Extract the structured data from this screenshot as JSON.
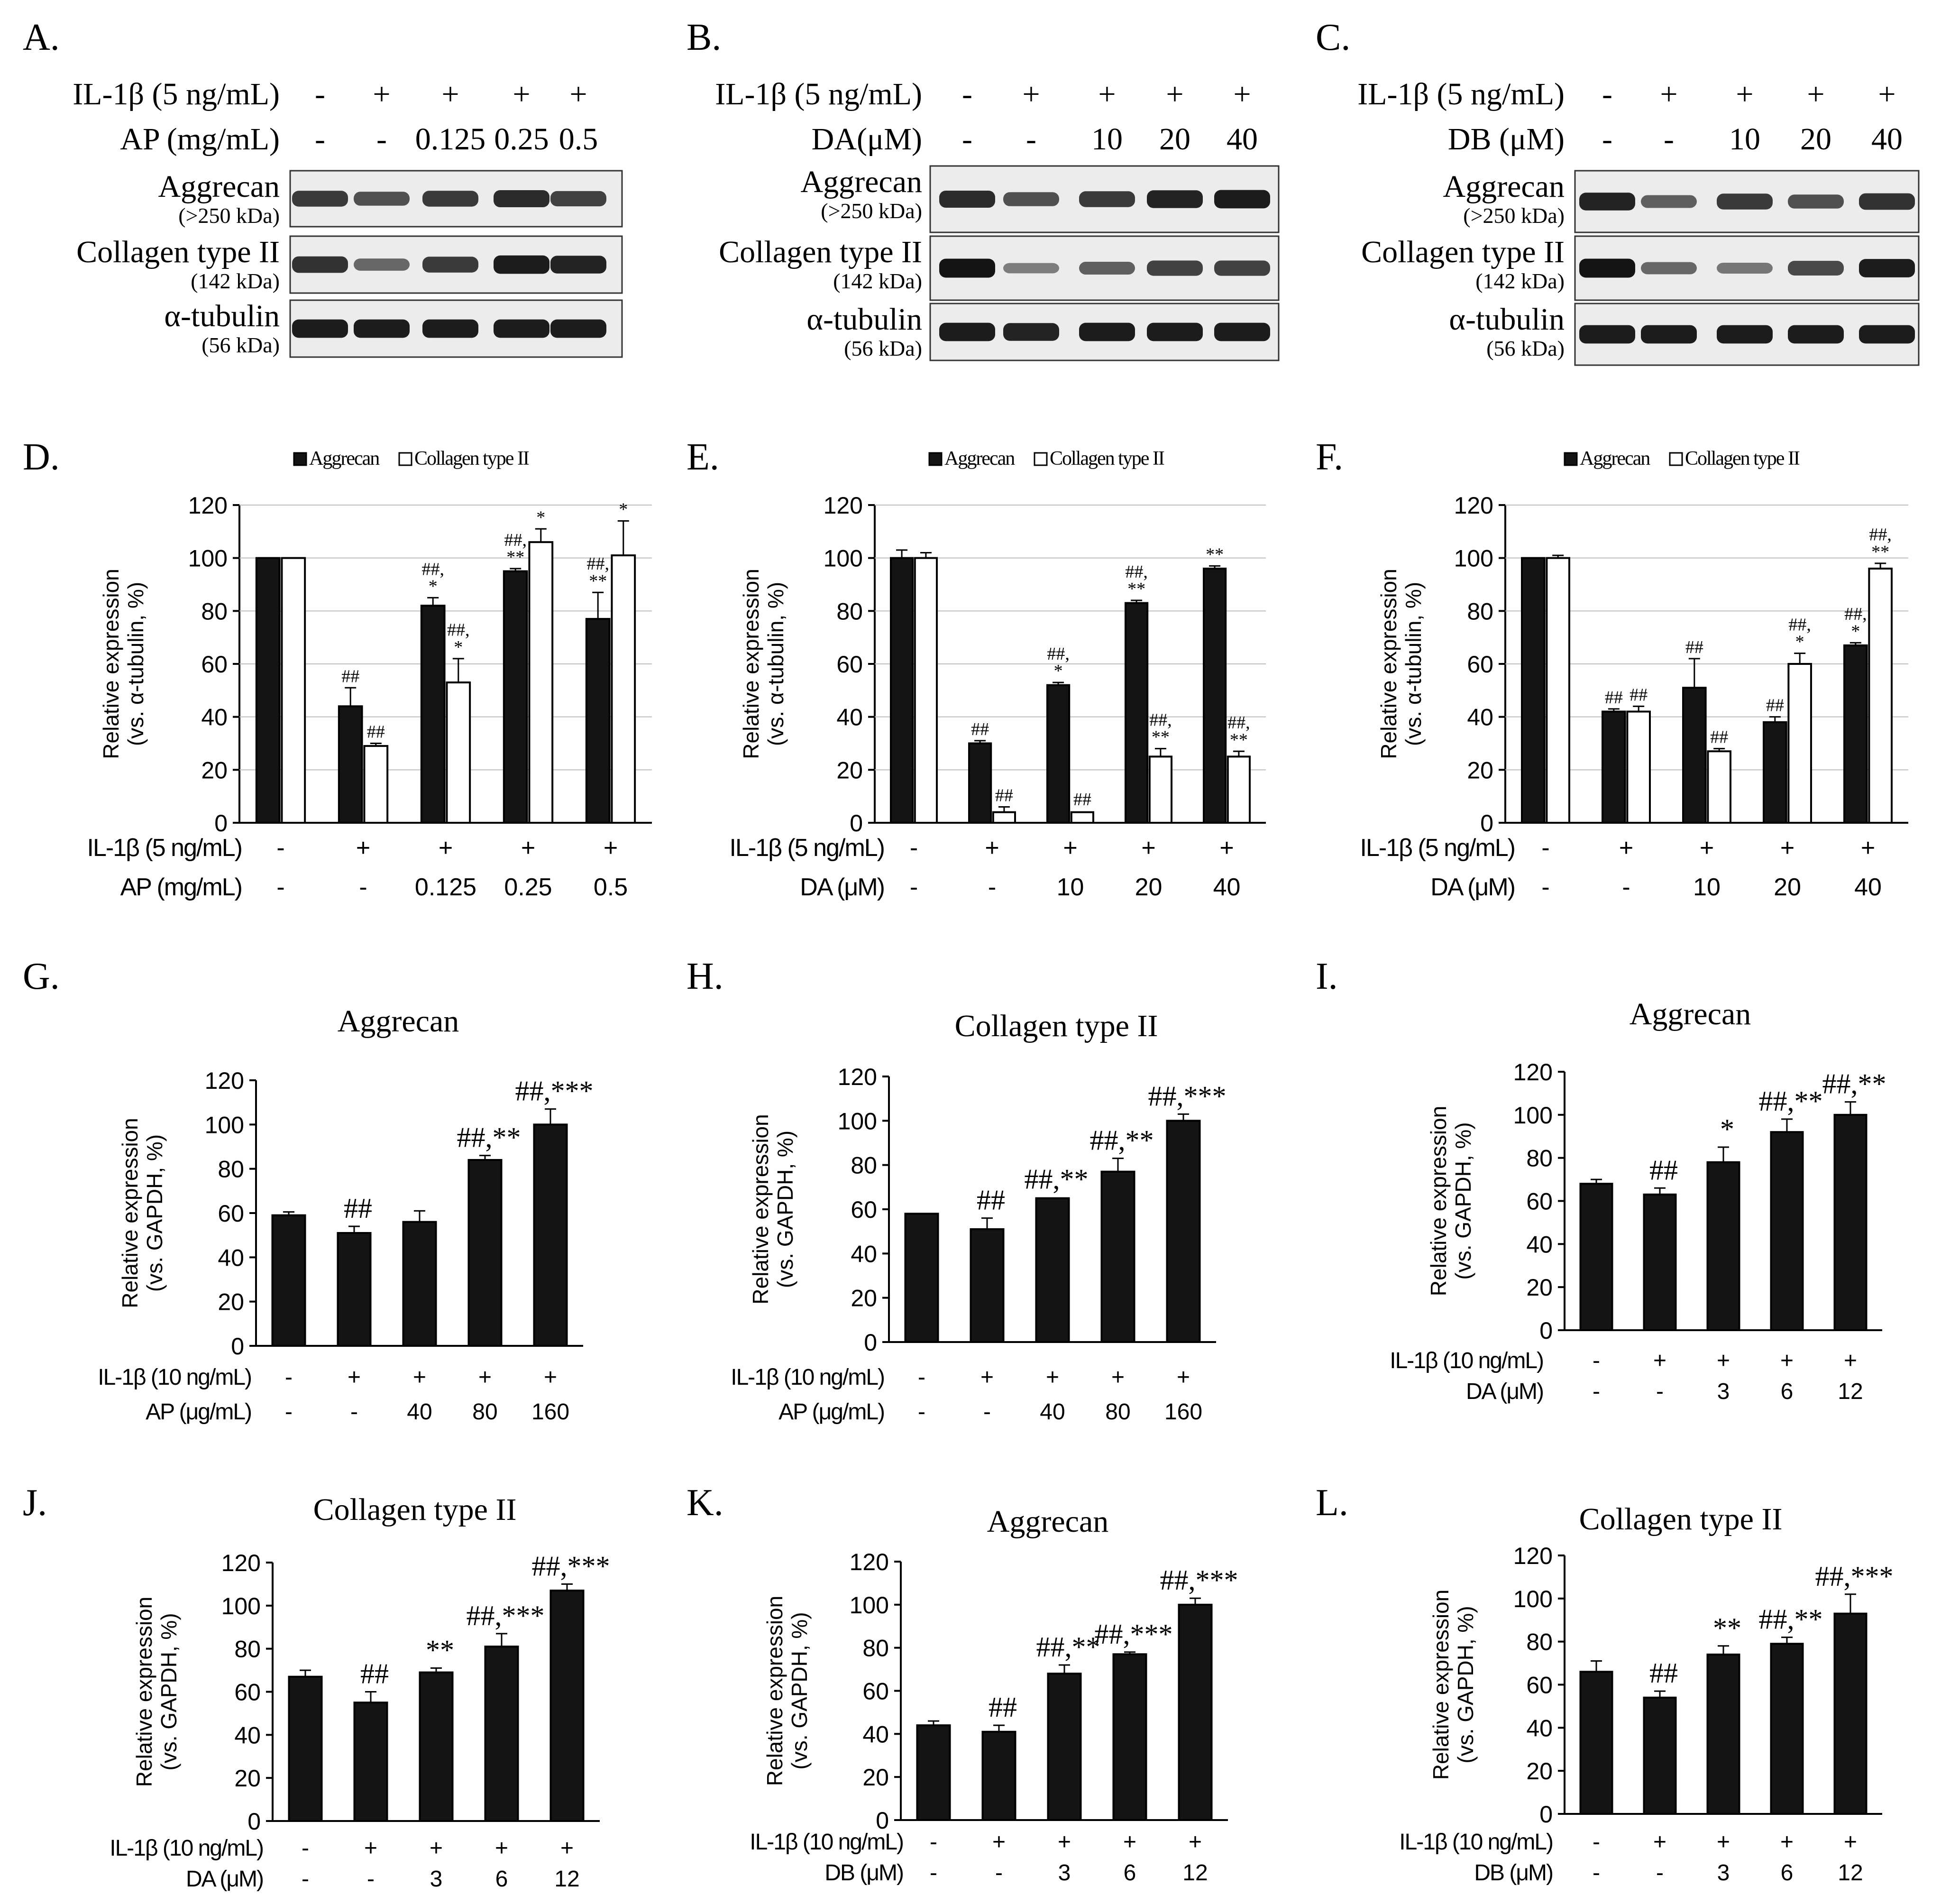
{
  "colors": {
    "bar_filled": "#141414",
    "bar_open": "#ffffff",
    "stroke": "#000000"
  },
  "western_panels": [
    {
      "panel": "A.",
      "conditions": [
        {
          "label": "IL-1β (5 ng/mL)",
          "values": [
            "-",
            "+",
            "+",
            "+",
            "+"
          ]
        },
        {
          "label": "AP (mg/mL)",
          "values": [
            "-",
            "-",
            "0.125",
            "0.25",
            "0.5"
          ]
        }
      ],
      "blots": [
        {
          "name": "Aggrecan",
          "size": "(>250 kDa)",
          "intensity": [
            0.75,
            0.6,
            0.75,
            0.85,
            0.7
          ]
        },
        {
          "name": "Collagen type II",
          "size": "(142 kDa)",
          "intensity": [
            0.8,
            0.45,
            0.75,
            0.95,
            0.9
          ]
        },
        {
          "name": "α-tubulin",
          "size": "(56 kDa)",
          "intensity": [
            0.95,
            0.95,
            0.95,
            0.95,
            0.95
          ]
        }
      ]
    },
    {
      "panel": "B.",
      "conditions": [
        {
          "label": "IL-1β (5 ng/mL)",
          "values": [
            "-",
            "+",
            "+",
            "+",
            "+"
          ]
        },
        {
          "label": "DA(μM)",
          "values": [
            "-",
            "-",
            "10",
            "20",
            "40"
          ]
        }
      ],
      "blots": [
        {
          "name": "Aggrecan",
          "size": "(>250 kDa)",
          "intensity": [
            0.85,
            0.6,
            0.75,
            0.9,
            0.95
          ]
        },
        {
          "name": "Collagen type II",
          "size": "(142 kDa)",
          "intensity": [
            1.0,
            0.3,
            0.5,
            0.7,
            0.7
          ]
        },
        {
          "name": "α-tubulin",
          "size": "(56 kDa)",
          "intensity": [
            0.95,
            0.9,
            0.95,
            0.95,
            0.95
          ]
        }
      ]
    },
    {
      "panel": "C.",
      "conditions": [
        {
          "label": "IL-1β (5 ng/mL)",
          "values": [
            "-",
            "+",
            "+",
            "+",
            "+"
          ]
        },
        {
          "label": "DB (μM)",
          "values": [
            "-",
            "-",
            "10",
            "20",
            "40"
          ]
        }
      ],
      "blots": [
        {
          "name": "Aggrecan",
          "size": "(>250 kDa)",
          "intensity": [
            0.9,
            0.5,
            0.75,
            0.6,
            0.8
          ]
        },
        {
          "name": "Collagen type II",
          "size": "(142 kDa)",
          "intensity": [
            1.0,
            0.45,
            0.35,
            0.65,
            0.95
          ]
        },
        {
          "name": "α-tubulin",
          "size": "(56 kDa)",
          "intensity": [
            0.95,
            0.95,
            0.95,
            0.95,
            0.95
          ]
        }
      ]
    }
  ],
  "chart_data": [
    {
      "panel": "D.",
      "type": "bar",
      "title": "",
      "ylabel": [
        "Relative expression",
        "(vs. α-tubulin, %)"
      ],
      "ylim": [
        0,
        120
      ],
      "yticks": [
        0,
        20,
        40,
        60,
        80,
        100,
        120
      ],
      "legend": [
        "Aggrecan",
        "Collagen type II"
      ],
      "conditions": [
        {
          "label": "IL-1β (5 ng/mL)",
          "values": [
            "-",
            "+",
            "+",
            "+",
            "+"
          ]
        },
        {
          "label": "AP (mg/mL)",
          "values": [
            "-",
            "-",
            "0.125",
            "0.25",
            "0.5"
          ]
        }
      ],
      "series": [
        {
          "name": "Aggrecan",
          "fill": "filled",
          "values": [
            100,
            44,
            82,
            95,
            77
          ],
          "errors": [
            0.5,
            7,
            3,
            1,
            10
          ],
          "annotations": [
            "",
            "##",
            "##,\n*",
            "##,\n**",
            "##,\n**"
          ]
        },
        {
          "name": "Collagen type II",
          "fill": "open",
          "values": [
            100,
            29,
            53,
            106,
            101
          ],
          "errors": [
            0.5,
            1,
            9,
            5,
            13
          ],
          "annotations": [
            "",
            "##",
            "##,\n*",
            "*",
            "*"
          ]
        }
      ]
    },
    {
      "panel": "E.",
      "type": "bar",
      "title": "",
      "ylabel": [
        "Relative expression",
        "(vs. α-tubulin, %)"
      ],
      "ylim": [
        0,
        120
      ],
      "yticks": [
        0,
        20,
        40,
        60,
        80,
        100,
        120
      ],
      "legend": [
        "Aggrecan",
        "Collagen type II"
      ],
      "conditions": [
        {
          "label": "IL-1β (5 ng/mL)",
          "values": [
            "-",
            "+",
            "+",
            "+",
            "+"
          ]
        },
        {
          "label": "DA (μM)",
          "values": [
            "-",
            "-",
            "10",
            "20",
            "40"
          ]
        }
      ],
      "series": [
        {
          "name": "Aggrecan",
          "fill": "filled",
          "values": [
            100,
            30,
            52,
            83,
            96
          ],
          "errors": [
            3,
            1,
            1,
            1,
            1
          ],
          "annotations": [
            "",
            "##",
            "##,\n*",
            "##,\n**",
            "**"
          ]
        },
        {
          "name": "Collagen type II",
          "fill": "open",
          "values": [
            100,
            4,
            4,
            25,
            25
          ],
          "errors": [
            2,
            2,
            0.5,
            3,
            2
          ],
          "annotations": [
            "",
            "##",
            "##",
            "##,\n**",
            "##,\n**"
          ]
        }
      ]
    },
    {
      "panel": "F.",
      "type": "bar",
      "title": "",
      "ylabel": [
        "Relative expression",
        "(vs. α-tubulin, %)"
      ],
      "ylim": [
        0,
        120
      ],
      "yticks": [
        0,
        20,
        40,
        60,
        80,
        100,
        120
      ],
      "legend": [
        "Aggrecan",
        "Collagen type II"
      ],
      "conditions": [
        {
          "label": "IL-1β (5 ng/mL)",
          "values": [
            "-",
            "+",
            "+",
            "+",
            "+"
          ]
        },
        {
          "label": "DA (μM)",
          "values": [
            "-",
            "-",
            "10",
            "20",
            "40"
          ]
        }
      ],
      "series": [
        {
          "name": "Aggrecan",
          "fill": "filled",
          "values": [
            100,
            42,
            51,
            38,
            67
          ],
          "errors": [
            0.5,
            1,
            11,
            2,
            1
          ],
          "annotations": [
            "",
            "##",
            "##",
            "##",
            "##,\n*"
          ]
        },
        {
          "name": "Collagen type II",
          "fill": "open",
          "values": [
            100,
            42,
            27,
            60,
            96
          ],
          "errors": [
            1,
            2,
            1,
            4,
            2
          ],
          "annotations": [
            "",
            "##",
            "##",
            "##,\n*",
            "##,\n**"
          ]
        }
      ]
    },
    {
      "panel": "G.",
      "type": "bar",
      "title": "Aggrecan",
      "ylabel": [
        "Relative expression",
        "(vs. GAPDH, %)"
      ],
      "ylim": [
        0,
        120
      ],
      "yticks": [
        0,
        20,
        40,
        60,
        80,
        100,
        120
      ],
      "conditions": [
        {
          "label": "IL-1β (10 ng/mL)",
          "values": [
            "-",
            "+",
            "+",
            "+",
            "+"
          ]
        },
        {
          "label": "AP (μg/mL)",
          "values": [
            "-",
            "-",
            "40",
            "80",
            "160"
          ]
        }
      ],
      "series": [
        {
          "name": "Aggrecan",
          "fill": "filled",
          "values": [
            59,
            51,
            56,
            84,
            100
          ],
          "errors": [
            1.5,
            3,
            5,
            2,
            7
          ],
          "annotations": [
            "",
            "##",
            "",
            "##,**",
            "##,***"
          ]
        }
      ]
    },
    {
      "panel": "H.",
      "type": "bar",
      "title": "Collagen type II",
      "ylabel": [
        "Relative expression",
        "(vs. GAPDH, %)"
      ],
      "ylim": [
        0,
        120
      ],
      "yticks": [
        0,
        20,
        40,
        60,
        80,
        100,
        120
      ],
      "conditions": [
        {
          "label": "IL-1β (10 ng/mL)",
          "values": [
            "-",
            "+",
            "+",
            "+",
            "+"
          ]
        },
        {
          "label": "AP (μg/mL)",
          "values": [
            "-",
            "-",
            "40",
            "80",
            "160"
          ]
        }
      ],
      "series": [
        {
          "name": "Collagen type II",
          "fill": "filled",
          "values": [
            58,
            51,
            65,
            77,
            100
          ],
          "errors": [
            0.5,
            5,
            0.5,
            6,
            3
          ],
          "annotations": [
            "",
            "##",
            "##,**",
            "##,**",
            "##,***"
          ]
        }
      ]
    },
    {
      "panel": "I.",
      "type": "bar",
      "title": "Aggrecan",
      "ylabel": [
        "Relative expression",
        "(vs. GAPDH, %)"
      ],
      "ylim": [
        0,
        120
      ],
      "yticks": [
        0,
        20,
        40,
        60,
        80,
        100,
        120
      ],
      "conditions": [
        {
          "label": "IL-1β (10 ng/mL)",
          "values": [
            "-",
            "+",
            "+",
            "+",
            "+"
          ]
        },
        {
          "label": "DA (μM)",
          "values": [
            "-",
            "-",
            "3",
            "6",
            "12"
          ]
        }
      ],
      "series": [
        {
          "name": "Aggrecan",
          "fill": "filled",
          "values": [
            68,
            63,
            78,
            92,
            100
          ],
          "errors": [
            2,
            3,
            7,
            6,
            6
          ],
          "annotations": [
            "",
            "##",
            "*",
            "##,**",
            "##,**"
          ]
        }
      ]
    },
    {
      "panel": "J.",
      "type": "bar",
      "title": "Collagen type II",
      "ylabel": [
        "Relative expression",
        "(vs. GAPDH, %)"
      ],
      "ylim": [
        0,
        120
      ],
      "yticks": [
        0,
        20,
        40,
        60,
        80,
        100,
        120
      ],
      "conditions": [
        {
          "label": "IL-1β (10 ng/mL)",
          "values": [
            "-",
            "+",
            "+",
            "+",
            "+"
          ]
        },
        {
          "label": "DA (μM)",
          "values": [
            "-",
            "-",
            "3",
            "6",
            "12"
          ]
        }
      ],
      "series": [
        {
          "name": "Collagen type II",
          "fill": "filled",
          "values": [
            67,
            55,
            69,
            81,
            107
          ],
          "errors": [
            3,
            5,
            2,
            6,
            3
          ],
          "annotations": [
            "",
            "##",
            "**",
            "##,***",
            "##,***"
          ]
        }
      ]
    },
    {
      "panel": "K.",
      "type": "bar",
      "title": "Aggrecan",
      "ylabel": [
        "Relative expression",
        "(vs. GAPDH, %)"
      ],
      "ylim": [
        0,
        120
      ],
      "yticks": [
        0,
        20,
        40,
        60,
        80,
        100,
        120
      ],
      "conditions": [
        {
          "label": "IL-1β (10 ng/mL)",
          "values": [
            "-",
            "+",
            "+",
            "+",
            "+"
          ]
        },
        {
          "label": "DB (μM)",
          "values": [
            "-",
            "-",
            "3",
            "6",
            "12"
          ]
        }
      ],
      "series": [
        {
          "name": "Aggrecan",
          "fill": "filled",
          "values": [
            44,
            41,
            68,
            77,
            100
          ],
          "errors": [
            2,
            3,
            4,
            1,
            3
          ],
          "annotations": [
            "",
            "##",
            "##,**",
            "##,***",
            "##,***"
          ]
        }
      ]
    },
    {
      "panel": "L.",
      "type": "bar",
      "title": "Collagen type II",
      "ylabel": [
        "Relative expression",
        "(vs. GAPDH, %)"
      ],
      "ylim": [
        0,
        120
      ],
      "yticks": [
        0,
        20,
        40,
        60,
        80,
        100,
        120
      ],
      "conditions": [
        {
          "label": "IL-1β (10 ng/mL)",
          "values": [
            "-",
            "+",
            "+",
            "+",
            "+"
          ]
        },
        {
          "label": "DB (μM)",
          "values": [
            "-",
            "-",
            "3",
            "6",
            "12"
          ]
        }
      ],
      "series": [
        {
          "name": "Collagen type II",
          "fill": "filled",
          "values": [
            66,
            54,
            74,
            79,
            93
          ],
          "errors": [
            5,
            3,
            4,
            3,
            9
          ],
          "annotations": [
            "",
            "##",
            "**",
            "##,**",
            "##,***"
          ]
        }
      ]
    }
  ]
}
